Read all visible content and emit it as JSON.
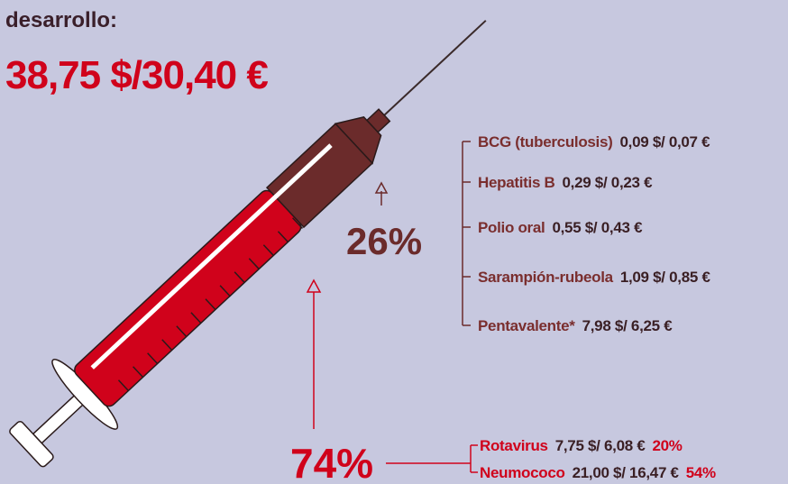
{
  "header": {
    "subtitle": "desarrollo:",
    "total": "38,75 $/30,40 €"
  },
  "share_other": "26%",
  "share_main": "74%",
  "other_vaccines": [
    {
      "name": "BCG (tuberculosis)",
      "price": "0,09 $/ 0,07 €"
    },
    {
      "name": "Hepatitis B",
      "price": "0,29 $/ 0,23 €"
    },
    {
      "name": "Polio oral",
      "price": "0,55 $/ 0,43 €"
    },
    {
      "name": "Sarampión-rubeola",
      "price": "1,09 $/ 0,85 €"
    },
    {
      "name": "Pentavalente*",
      "price": "7,98 $/ 6,25 €"
    }
  ],
  "main_vaccines": [
    {
      "name": "Rotavirus",
      "price": "7,75 $/ 6,08 €",
      "share": "20%"
    },
    {
      "name": "Neumococo",
      "price": "21,00 $/ 16,47 €",
      "share": "54%"
    }
  ]
}
